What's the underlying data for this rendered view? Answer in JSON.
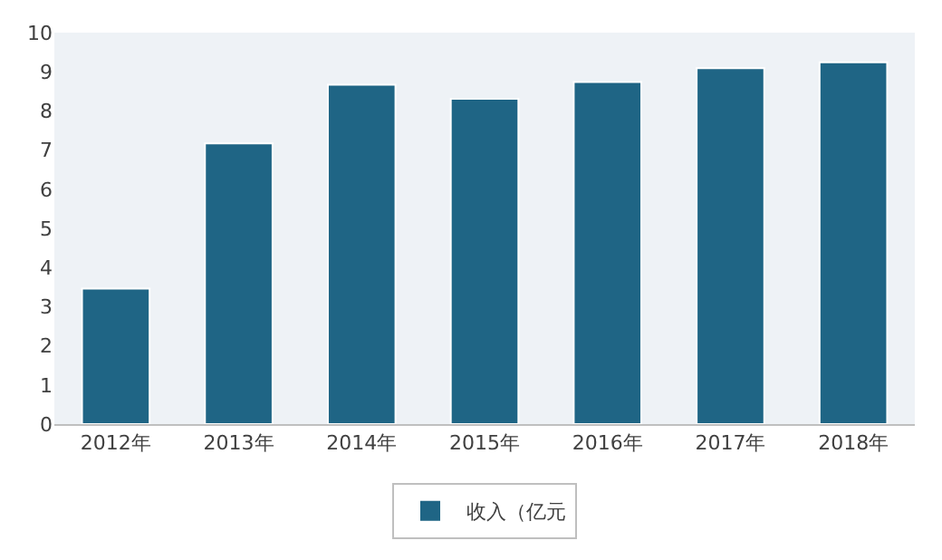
{
  "chart_data": {
    "type": "bar",
    "categories": [
      "2012年",
      "2013年",
      "2014年",
      "2015年",
      "2016年",
      "2017年",
      "2018年"
    ],
    "series": [
      {
        "name": "收入（亿元",
        "color": "#1f6585",
        "values": [
          3.46,
          7.17,
          8.67,
          8.31,
          8.74,
          9.09,
          9.24
        ]
      }
    ],
    "ylim": [
      0,
      10
    ],
    "yticks": [
      0,
      1,
      2,
      3,
      4,
      5,
      6,
      7,
      8,
      9,
      10
    ],
    "grid": false,
    "legend": "bottom"
  }
}
